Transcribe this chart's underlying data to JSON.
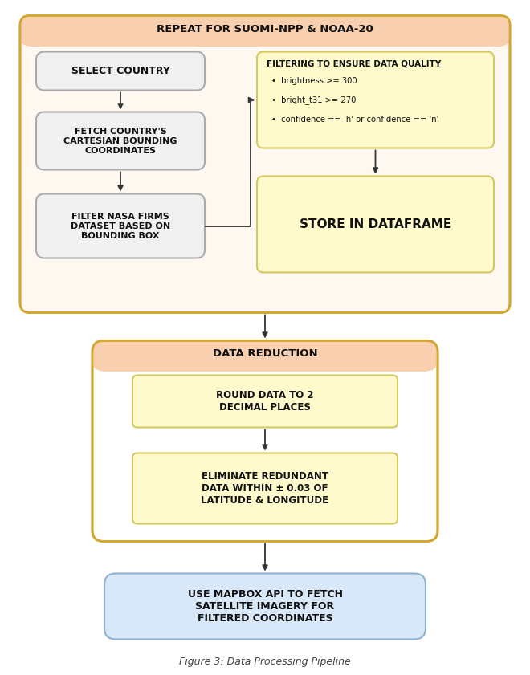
{
  "title": "REPEAT FOR SUOMI-NPP & NOAA-20",
  "fig_caption": "Figure 3: Data Processing Pipeline",
  "bg_color": "#ffffff",
  "outer_repeat_fill": "#fff8f0",
  "outer_repeat_edge": "#d4a830",
  "outer_repeat_header_fill": "#f8d0b0",
  "left_box_fill": "#f0f0f0",
  "left_box_edge": "#aaaaaa",
  "filter_box_fill": "#fffacc",
  "filter_box_edge": "#d4c860",
  "store_box_fill": "#fffacc",
  "store_box_edge": "#d4c860",
  "dr_outer_fill": "#ffffff",
  "dr_outer_edge": "#d4a830",
  "dr_header_fill": "#f8d0b0",
  "dr_inner_fill": "#fffacc",
  "dr_inner_edge": "#d4c860",
  "mapbox_fill": "#d8e8f8",
  "mapbox_edge": "#90b0d0",
  "arrow_color": "#333333",
  "text_color": "#111111",
  "box1_text": "SELECT COUNTRY",
  "box2_text": "FETCH COUNTRY'S\nCARTESIAN BOUNDING\nCOORDINATES",
  "box3_text": "FILTER NASA FIRMS\nDATASET BASED ON\nBOUNDING BOX",
  "filter_title": "FILTERING TO ENSURE DATA QUALITY",
  "filter_bullets": [
    "brightness >= 300",
    "bright_t31 >= 270",
    "confidence == 'h' or confidence == 'n'"
  ],
  "store_text": "STORE IN DATAFRAME",
  "dr_title": "DATA REDUCTION",
  "round_text": "ROUND DATA TO 2\nDECIMAL PLACES",
  "elim_text": "ELIMINATE REDUNDANT\nDATA WITHIN ± 0.03 OF\nLATITUDE & LONGITUDE",
  "mapbox_text": "USE MAPBOX API TO FETCH\nSATELLITE IMAGERY FOR\nFILTERED COORDINATES"
}
